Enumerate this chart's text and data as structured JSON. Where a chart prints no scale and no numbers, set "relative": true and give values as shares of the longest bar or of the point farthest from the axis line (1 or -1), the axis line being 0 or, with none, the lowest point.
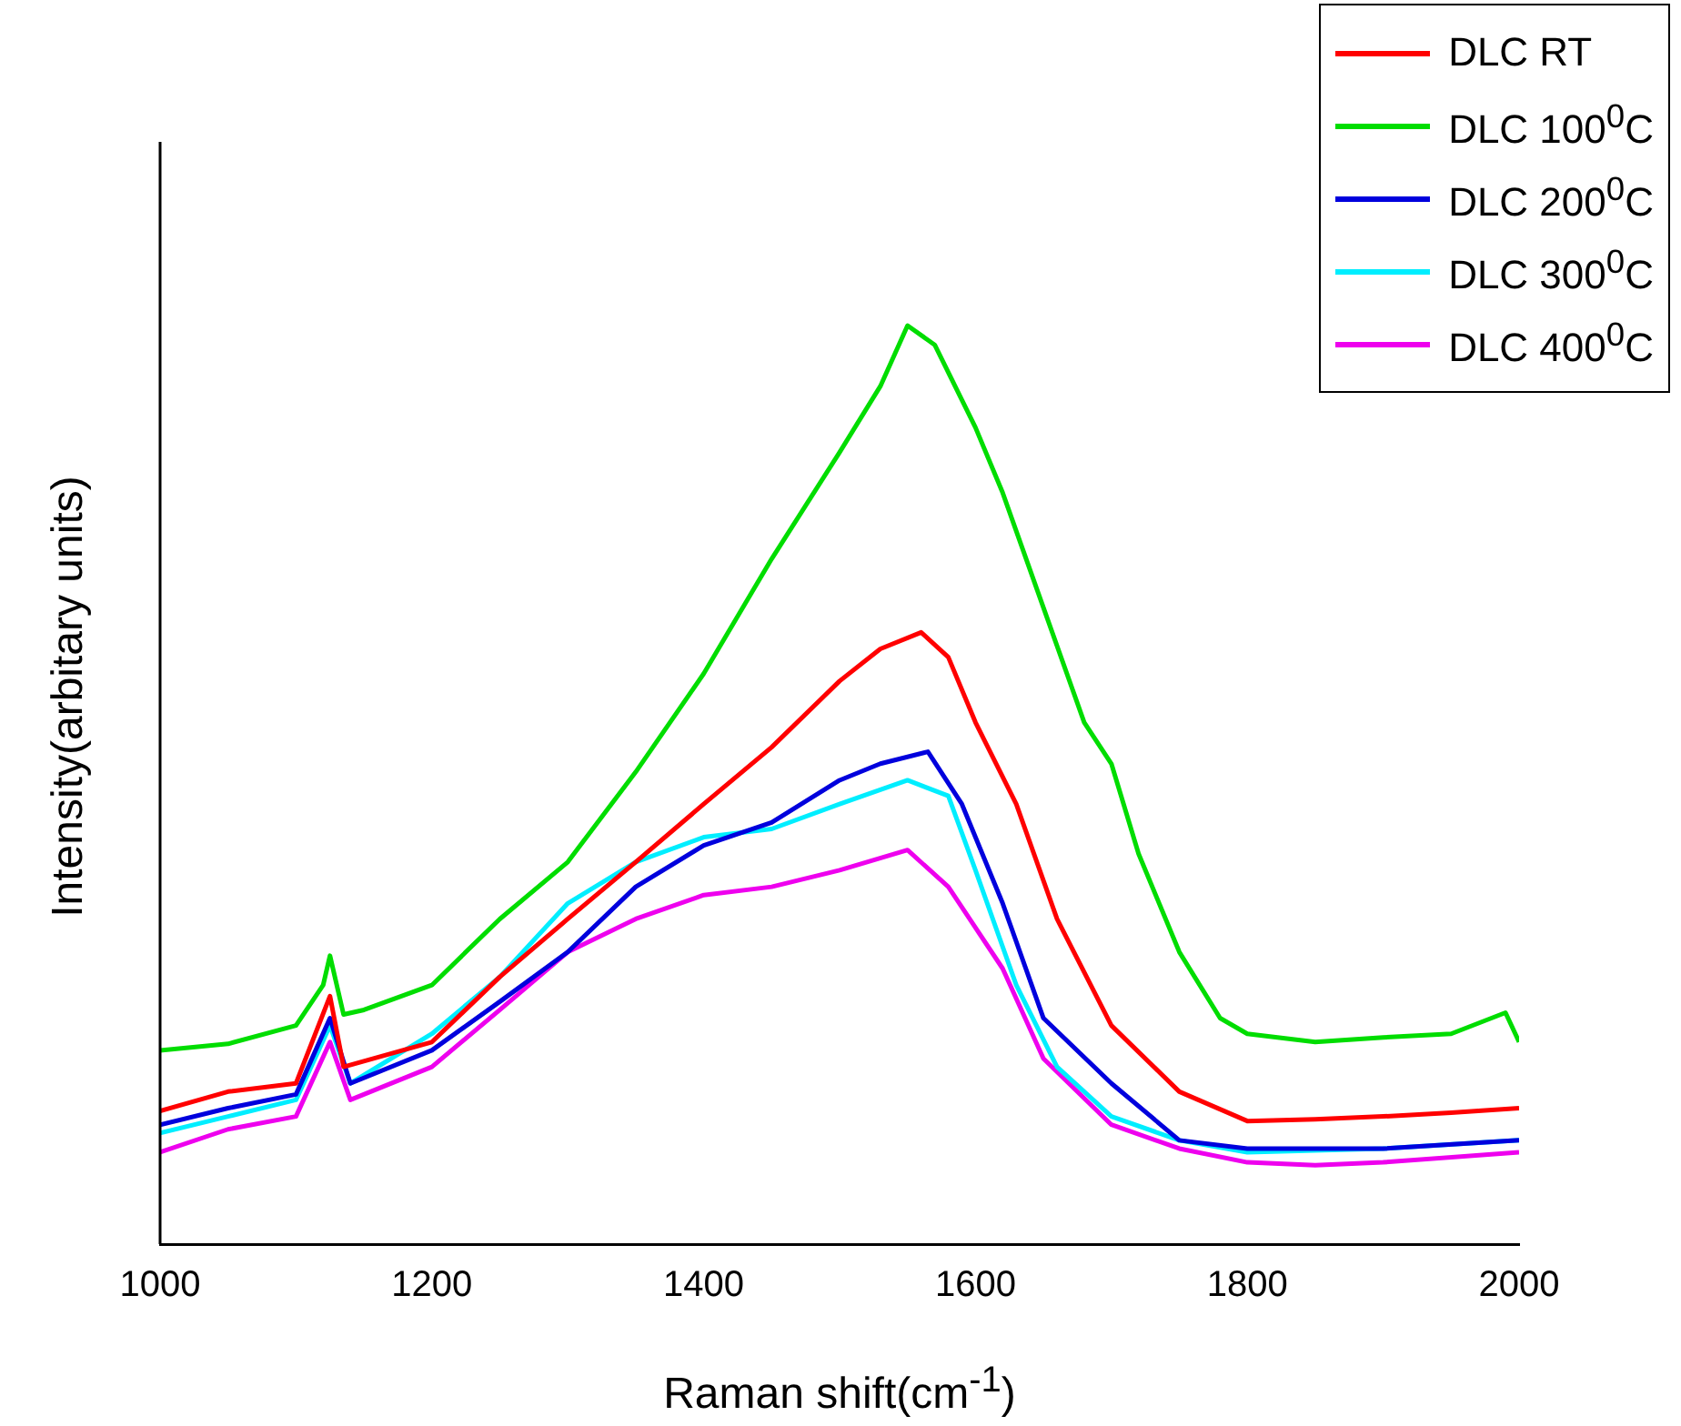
{
  "chart_data": {
    "type": "line",
    "xlabel": "Raman shift(cm$^{-1}$)",
    "ylabel": "Intensity(arbitary units)",
    "relative": true,
    "tick_labels": "x",
    "grid": false,
    "marker": "none",
    "legend": "top right",
    "xlim": [
      1000,
      2000
    ],
    "xticks": [
      1000,
      1200,
      1400,
      1600,
      1800,
      2000
    ],
    "series": [
      {
        "name": "DLC RT",
        "color": "#ff0000",
        "x": [
          1000,
          1050,
          1100,
          1125,
          1135,
          1200,
          1250,
          1300,
          1350,
          1400,
          1450,
          1500,
          1530,
          1560,
          1580,
          1600,
          1630,
          1660,
          1700,
          1750,
          1800,
          1850,
          1900,
          1950,
          2000
        ],
        "values": [
          0.145,
          0.166,
          0.175,
          0.27,
          0.193,
          0.22,
          0.291,
          0.354,
          0.416,
          0.479,
          0.541,
          0.613,
          0.648,
          0.666,
          0.639,
          0.568,
          0.479,
          0.354,
          0.238,
          0.166,
          0.134,
          0.136,
          0.139,
          0.143,
          0.148
        ]
      },
      {
        "name": "DLC 100$^{0}$C",
        "color": "#00dd00",
        "x": [
          1000,
          1050,
          1100,
          1120,
          1125,
          1135,
          1150,
          1200,
          1250,
          1300,
          1350,
          1400,
          1450,
          1500,
          1530,
          1550,
          1570,
          1600,
          1620,
          1650,
          1680,
          1700,
          1720,
          1750,
          1780,
          1800,
          1850,
          1900,
          1950,
          1990,
          2000
        ],
        "values": [
          0.211,
          0.218,
          0.238,
          0.282,
          0.314,
          0.25,
          0.255,
          0.282,
          0.354,
          0.416,
          0.514,
          0.621,
          0.746,
          0.862,
          0.934,
          1.0,
          0.979,
          0.889,
          0.818,
          0.693,
          0.568,
          0.523,
          0.425,
          0.318,
          0.246,
          0.229,
          0.22,
          0.225,
          0.229,
          0.252,
          0.22
        ]
      },
      {
        "name": "DLC 200$^{0}$C",
        "color": "#0000dd",
        "x": [
          1000,
          1050,
          1100,
          1125,
          1140,
          1200,
          1250,
          1300,
          1350,
          1400,
          1450,
          1500,
          1530,
          1565,
          1590,
          1620,
          1650,
          1700,
          1750,
          1800,
          1900,
          2000
        ],
        "values": [
          0.13,
          0.148,
          0.163,
          0.246,
          0.175,
          0.211,
          0.264,
          0.318,
          0.389,
          0.434,
          0.459,
          0.505,
          0.523,
          0.536,
          0.479,
          0.371,
          0.246,
          0.175,
          0.113,
          0.104,
          0.104,
          0.113
        ]
      },
      {
        "name": "DLC 300$^{0}$C",
        "color": "#00eeff",
        "x": [
          1000,
          1050,
          1100,
          1125,
          1140,
          1200,
          1250,
          1300,
          1350,
          1400,
          1450,
          1500,
          1550,
          1580,
          1600,
          1630,
          1660,
          1700,
          1750,
          1800,
          1900,
          2000
        ],
        "values": [
          0.121,
          0.139,
          0.157,
          0.238,
          0.175,
          0.229,
          0.291,
          0.371,
          0.416,
          0.443,
          0.452,
          0.479,
          0.505,
          0.488,
          0.407,
          0.282,
          0.193,
          0.139,
          0.113,
          0.1,
          0.104,
          0.113
        ]
      },
      {
        "name": "DLC 400$^{0}$C",
        "color": "#ee00ee",
        "x": [
          1000,
          1050,
          1100,
          1125,
          1140,
          1200,
          1250,
          1300,
          1350,
          1400,
          1450,
          1500,
          1550,
          1580,
          1620,
          1650,
          1700,
          1750,
          1800,
          1850,
          1900,
          2000
        ],
        "values": [
          0.1,
          0.125,
          0.139,
          0.22,
          0.157,
          0.193,
          0.255,
          0.318,
          0.354,
          0.38,
          0.389,
          0.407,
          0.429,
          0.389,
          0.3,
          0.202,
          0.13,
          0.104,
          0.089,
          0.086,
          0.089,
          0.1
        ]
      }
    ]
  }
}
